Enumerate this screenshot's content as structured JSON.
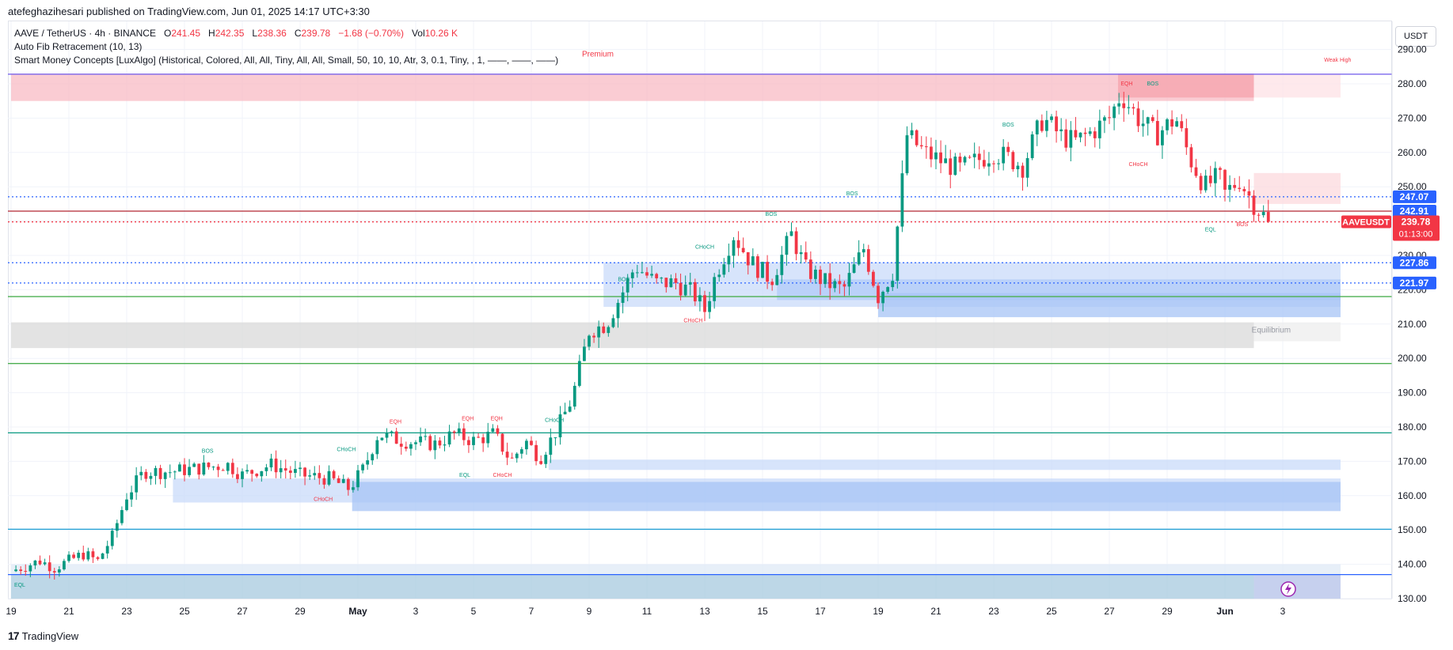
{
  "publisher": "atefeghazihesari published on TradingView.com, Jun 01, 2025 14:17 UTC+3:30",
  "legend": {
    "symbol": "AAVE / TetherUS · 4h · BINANCE",
    "o_label": "O",
    "o_value": "241.45",
    "h_label": "H",
    "h_value": "242.35",
    "l_label": "L",
    "l_value": "238.36",
    "c_label": "C",
    "c_value": "239.78",
    "change": "−1.68 (−0.70%)",
    "vol_label": "Vol",
    "vol_value": "10.26 K",
    "indicator1": "Auto Fib Retracement (10, 13)",
    "indicator2": "Smart Money Concepts [LuxAlgo] (Historical, Colored, All, All, Tiny, All, All, Small, 50, 10, 10, Atr, 3, 0.1, Tiny, , 1, ——, ——, ——)"
  },
  "currency": "USDT",
  "footer": {
    "brand": "TradingView",
    "mark": "17"
  },
  "colors": {
    "up": "#089981",
    "down": "#f23645",
    "fib_blue": "#2962ff",
    "accent_blue": "#2962ff"
  },
  "chart_data": {
    "type": "candlestick",
    "symbol": "AAVEUSDT",
    "ylim": [
      130,
      300
    ],
    "y_ticks": [
      130,
      140,
      150,
      160,
      170,
      180,
      190,
      200,
      210,
      220,
      230,
      240,
      250,
      260,
      270,
      280,
      290
    ],
    "x_range": [
      0,
      46
    ],
    "x_ticks": [
      {
        "label": "19",
        "x": 0
      },
      {
        "label": "21",
        "x": 2
      },
      {
        "label": "23",
        "x": 4
      },
      {
        "label": "25",
        "x": 6
      },
      {
        "label": "27",
        "x": 8
      },
      {
        "label": "29",
        "x": 10
      },
      {
        "label": "May",
        "x": 12
      },
      {
        "label": "3",
        "x": 14
      },
      {
        "label": "5",
        "x": 16
      },
      {
        "label": "7",
        "x": 18
      },
      {
        "label": "9",
        "x": 20
      },
      {
        "label": "11",
        "x": 22
      },
      {
        "label": "13",
        "x": 24
      },
      {
        "label": "15",
        "x": 26
      },
      {
        "label": "17",
        "x": 28
      },
      {
        "label": "19",
        "x": 30
      },
      {
        "label": "21",
        "x": 32
      },
      {
        "label": "23",
        "x": 34
      },
      {
        "label": "25",
        "x": 36
      },
      {
        "label": "27",
        "x": 38
      },
      {
        "label": "29",
        "x": 40
      },
      {
        "label": "Jun",
        "x": 42
      },
      {
        "label": "3",
        "x": 44
      }
    ],
    "price_path": [
      [
        0,
        138
      ],
      [
        1,
        141
      ],
      [
        1.5,
        139
      ],
      [
        2.5,
        143
      ],
      [
        3,
        141
      ],
      [
        3.5,
        148
      ],
      [
        4,
        160
      ],
      [
        4.6,
        167
      ],
      [
        5.5,
        167
      ],
      [
        6.5,
        168
      ],
      [
        7.5,
        169
      ],
      [
        8,
        166
      ],
      [
        9,
        169
      ],
      [
        10,
        166
      ],
      [
        11,
        165
      ],
      [
        11.7,
        162
      ],
      [
        12.2,
        168
      ],
      [
        12.7,
        178
      ],
      [
        13.5,
        176
      ],
      [
        14.7,
        175
      ],
      [
        15.3,
        178
      ],
      [
        16,
        176
      ],
      [
        16.7,
        178
      ],
      [
        17.3,
        170
      ],
      [
        17.8,
        176
      ],
      [
        18.3,
        171
      ],
      [
        18.8,
        178
      ],
      [
        19.4,
        188
      ],
      [
        20,
        208
      ],
      [
        20.6,
        210
      ],
      [
        21.2,
        220
      ],
      [
        21.6,
        227
      ],
      [
        22.3,
        222
      ],
      [
        23,
        222
      ],
      [
        23.6,
        219
      ],
      [
        24,
        214
      ],
      [
        24.4,
        225
      ],
      [
        25,
        236
      ],
      [
        25.6,
        228
      ],
      [
        26.3,
        223
      ],
      [
        27,
        236
      ],
      [
        27.5,
        226
      ],
      [
        28.2,
        222
      ],
      [
        28.8,
        220
      ],
      [
        29.5,
        232
      ],
      [
        30,
        218
      ],
      [
        30.5,
        225
      ],
      [
        31,
        265
      ],
      [
        31.6,
        260
      ],
      [
        32.3,
        257
      ],
      [
        32.8,
        255
      ],
      [
        33.5,
        258
      ],
      [
        34,
        260
      ],
      [
        34.6,
        258
      ],
      [
        35,
        256
      ],
      [
        35.7,
        270
      ],
      [
        36.3,
        265
      ],
      [
        36.8,
        263
      ],
      [
        37.4,
        266
      ],
      [
        38,
        270
      ],
      [
        38.4,
        277
      ],
      [
        39,
        270
      ],
      [
        39.6,
        265
      ],
      [
        40.3,
        270
      ],
      [
        40.8,
        258
      ],
      [
        41.3,
        250
      ],
      [
        41.8,
        253
      ],
      [
        42,
        248
      ],
      [
        42.5,
        252
      ],
      [
        43,
        245
      ],
      [
        43.4,
        241
      ],
      [
        43.6,
        239.78
      ]
    ],
    "price_tags": [
      {
        "label": "247.07",
        "value": 247.07,
        "color": "#2962ff"
      },
      {
        "label": "242.91",
        "value": 242.91,
        "color": "#2962ff"
      },
      {
        "label": "227.86",
        "value": 227.86,
        "color": "#2962ff"
      },
      {
        "label": "221.97",
        "value": 221.97,
        "color": "#2962ff"
      }
    ],
    "current": {
      "symbol": "AAVEUSDT",
      "price": "239.78",
      "value": 239.78,
      "countdown": "01:13:00"
    },
    "h_lines": [
      {
        "value": 247.07,
        "color": "#2962ff",
        "style": "dotted"
      },
      {
        "value": 242.91,
        "color": "#b22833",
        "style": "solid"
      },
      {
        "value": 239.78,
        "color": "#f23645",
        "style": "dotted"
      },
      {
        "value": 227.86,
        "color": "#2962ff",
        "style": "dotted"
      },
      {
        "value": 221.97,
        "color": "#2962ff",
        "style": "dotted"
      },
      {
        "value": 218.0,
        "color": "#4caf50",
        "style": "solid"
      },
      {
        "value": 198.5,
        "color": "#4caf50",
        "style": "solid"
      },
      {
        "value": 178.3,
        "color": "#089981",
        "style": "solid"
      },
      {
        "value": 150.2,
        "color": "#2ca5d6",
        "style": "solid"
      },
      {
        "value": 137.0,
        "color": "#2962ff",
        "style": "solid"
      },
      {
        "value": 282.8,
        "color": "#7b68ee",
        "style": "solid"
      }
    ],
    "zones": [
      {
        "name": "premium-zone",
        "x0": 0,
        "x1": 43,
        "y0": 275,
        "y1": 283,
        "color": "#f8bbc4"
      },
      {
        "name": "premium-zone-ext",
        "x0": 43,
        "x1": 46,
        "y0": 276,
        "y1": 283,
        "color": "#fde2e5"
      },
      {
        "name": "bearish-ob-top",
        "x0": 38.3,
        "x1": 43,
        "y0": 276,
        "y1": 283,
        "color": "#f5a3ac"
      },
      {
        "name": "bearish-ob-right",
        "x0": 43,
        "x1": 46,
        "y0": 245,
        "y1": 254,
        "color": "#fcdadd"
      },
      {
        "name": "equilibrium-zone",
        "x0": 0,
        "x1": 43,
        "y0": 203,
        "y1": 210.5,
        "color": "#dadada"
      },
      {
        "name": "equilibrium-zone-ext",
        "x0": 43,
        "x1": 46,
        "y0": 205,
        "y1": 210.5,
        "color": "#eeeeee"
      },
      {
        "name": "bullish-ob-1",
        "x0": 20.5,
        "x1": 46,
        "y0": 215,
        "y1": 228,
        "color": "#c9dbfa"
      },
      {
        "name": "bullish-ob-2",
        "x0": 26.5,
        "x1": 46,
        "y0": 217,
        "y1": 223,
        "color": "#b0cbf8"
      },
      {
        "name": "bullish-ob-3",
        "x0": 30,
        "x1": 46,
        "y0": 212,
        "y1": 219,
        "color": "#a7c4f6"
      },
      {
        "name": "bullish-ob-4",
        "x0": 18.6,
        "x1": 46,
        "y0": 167.5,
        "y1": 170.5,
        "color": "#c9dbfa"
      },
      {
        "name": "bullish-ob-5",
        "x0": 5.6,
        "x1": 46,
        "y0": 158,
        "y1": 165,
        "color": "#c9dbfa"
      },
      {
        "name": "bullish-ob-6",
        "x0": 11.8,
        "x1": 46,
        "y0": 155.5,
        "y1": 164,
        "color": "#a7c4f6"
      },
      {
        "name": "discount-zone",
        "x0": 0,
        "x1": 46,
        "y0": 130,
        "y1": 137,
        "color": "#a7c9df"
      },
      {
        "name": "discount-zone-top",
        "x0": 0,
        "x1": 46,
        "y0": 137,
        "y1": 140,
        "color": "#dfe9f6"
      },
      {
        "name": "discount-zone-right",
        "x0": 43,
        "x1": 46,
        "y0": 130,
        "y1": 137,
        "color": "#c9cdf0"
      }
    ],
    "structure_labels": [
      {
        "text": "Premium",
        "x": 20.3,
        "y": 288,
        "color": "#f23645"
      },
      {
        "text": "Weak High",
        "x": 45.9,
        "y": 286.5,
        "color": "#f23645"
      },
      {
        "text": "Equilibrium",
        "x": 43.6,
        "y": 207.5,
        "color": "#9598a1"
      },
      {
        "text": "EQL",
        "x": 0.3,
        "y": 133.5,
        "color": "#089981"
      },
      {
        "text": "EQH",
        "x": 38.6,
        "y": 279.5,
        "color": "#f23645"
      },
      {
        "text": "BOS",
        "x": 39.5,
        "y": 279.5,
        "color": "#089981"
      },
      {
        "text": "BOS",
        "x": 34.5,
        "y": 267.5,
        "color": "#089981"
      },
      {
        "text": "CHoCH",
        "x": 39.0,
        "y": 256,
        "color": "#f23645"
      },
      {
        "text": "BOS",
        "x": 29.1,
        "y": 247.5,
        "color": "#089981"
      },
      {
        "text": "BOS",
        "x": 26.3,
        "y": 241.5,
        "color": "#089981"
      },
      {
        "text": "EQL",
        "x": 41.5,
        "y": 237,
        "color": "#089981"
      },
      {
        "text": "BOS",
        "x": 42.6,
        "y": 238.5,
        "color": "#f23645"
      },
      {
        "text": "CHoCH",
        "x": 24.0,
        "y": 232,
        "color": "#089981"
      },
      {
        "text": "BOS",
        "x": 21.2,
        "y": 222.5,
        "color": "#089981"
      },
      {
        "text": "CHoCH",
        "x": 23.6,
        "y": 210.5,
        "color": "#f23645"
      },
      {
        "text": "EQH",
        "x": 13.3,
        "y": 181,
        "color": "#f23645"
      },
      {
        "text": "EQH",
        "x": 15.8,
        "y": 182,
        "color": "#f23645"
      },
      {
        "text": "EQH",
        "x": 16.8,
        "y": 182,
        "color": "#f23645"
      },
      {
        "text": "CHoCH",
        "x": 18.8,
        "y": 181.5,
        "color": "#089981"
      },
      {
        "text": "BOS",
        "x": 6.8,
        "y": 172.5,
        "color": "#089981"
      },
      {
        "text": "CHoCH",
        "x": 11.6,
        "y": 173,
        "color": "#089981"
      },
      {
        "text": "EQL",
        "x": 15.7,
        "y": 165.5,
        "color": "#089981"
      },
      {
        "text": "CHoCH",
        "x": 17.0,
        "y": 165.5,
        "color": "#f23645"
      },
      {
        "text": "CHoCH",
        "x": 10.8,
        "y": 158.5,
        "color": "#f23645"
      }
    ]
  }
}
